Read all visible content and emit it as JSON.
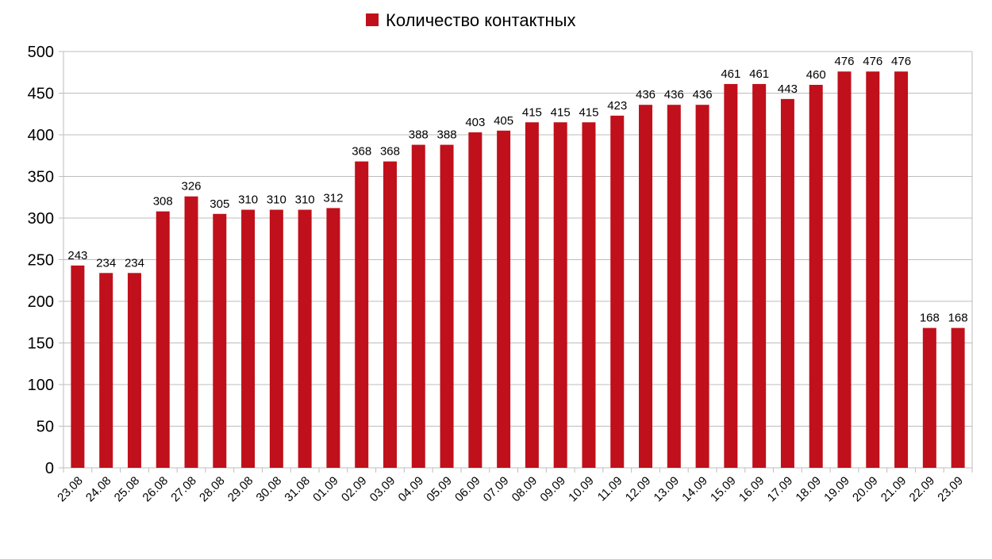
{
  "chart_data": {
    "type": "bar",
    "title": "",
    "xlabel": "",
    "ylabel": "",
    "legend": "top-center",
    "grid": true,
    "ylim": [
      0,
      500
    ],
    "yticks": [
      "0",
      "50",
      "100",
      "150",
      "200",
      "250",
      "300",
      "350",
      "400",
      "450",
      "500"
    ],
    "categories": [
      "23.08",
      "24.08",
      "25.08",
      "26.08",
      "27.08",
      "28.08",
      "29.08",
      "30.08",
      "31.08",
      "01.09",
      "02.09",
      "03.09",
      "04.09",
      "05.09",
      "06.09",
      "07.09",
      "08.09",
      "09.09",
      "10.09",
      "11.09",
      "12.09",
      "13.09",
      "14.09",
      "15.09",
      "16.09",
      "17.09",
      "18.09",
      "19.09",
      "20.09",
      "21.09",
      "22.09",
      "23.09"
    ],
    "series": [
      {
        "name": "Количество контактных",
        "color": "#c0101b",
        "values": [
          243,
          234,
          234,
          308,
          326,
          305,
          310,
          310,
          310,
          312,
          368,
          368,
          388,
          388,
          403,
          405,
          415,
          415,
          415,
          423,
          436,
          436,
          436,
          461,
          461,
          443,
          460,
          476,
          476,
          476,
          168,
          168
        ]
      }
    ]
  }
}
